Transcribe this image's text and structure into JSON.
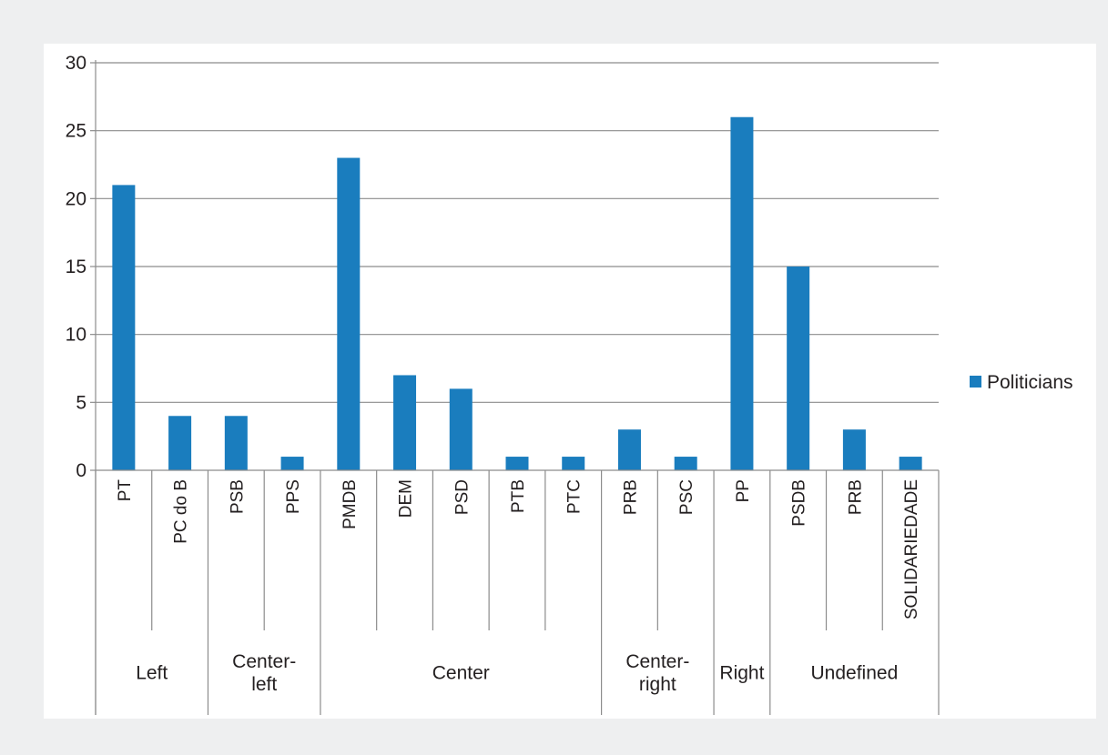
{
  "chart_data": {
    "type": "bar",
    "categories": [
      "PT",
      "PC do B",
      "PSB",
      "PPS",
      "PMDB",
      "DEM",
      "PSD",
      "PTB",
      "PTC",
      "PRB",
      "PSC",
      "PP",
      "PSDB",
      "PRB",
      "SOLIDARIEDADE"
    ],
    "groups": [
      {
        "label": [
          "Left"
        ],
        "span": 2
      },
      {
        "label": [
          "Center-",
          "left"
        ],
        "span": 2
      },
      {
        "label": [
          "Center"
        ],
        "span": 5
      },
      {
        "label": [
          "Center-",
          "right"
        ],
        "span": 2
      },
      {
        "label": [
          "Right"
        ],
        "span": 1
      },
      {
        "label": [
          "Undefined"
        ],
        "span": 3
      }
    ],
    "series": [
      {
        "name": "Politicians",
        "values": [
          21,
          4,
          4,
          1,
          23,
          7,
          6,
          1,
          1,
          3,
          1,
          26,
          15,
          3,
          1
        ],
        "color": "#1a7dbe"
      }
    ],
    "y_ticks": [
      "0",
      "5",
      "10",
      "15",
      "20",
      "25",
      "30"
    ],
    "ylim": [
      0,
      30
    ],
    "grid": true,
    "legend_position": "right"
  }
}
